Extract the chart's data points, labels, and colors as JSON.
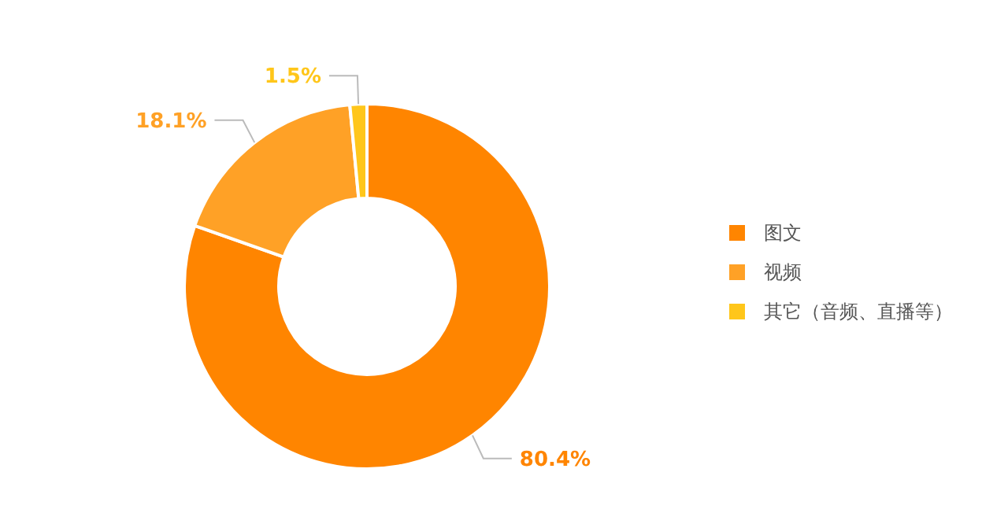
{
  "chart_data": {
    "type": "donut",
    "categories": [
      "图文",
      "视频",
      "其它（音频、直播等）"
    ],
    "values": [
      80.4,
      18.1,
      1.5
    ],
    "colors": [
      "#ff8500",
      "#ffa126",
      "#ffc61a"
    ],
    "value_labels": [
      "80.4%",
      "18.1%",
      "1.5%"
    ],
    "legend": "right"
  }
}
